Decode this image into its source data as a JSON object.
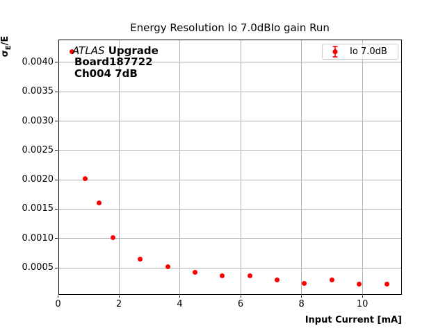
{
  "title": "Energy Resolution Io 7.0dBIo gain Run",
  "axes": {
    "xlabel": "Input Current [mA]",
    "ylabel_sigma": "σ",
    "ylabel_sub": "E",
    "ylabel_rest": "/E"
  },
  "annotation": {
    "experiment": "ATLAS",
    "line1_rest": " Upgrade",
    "line2": "Board187722",
    "line3": "Ch004 7dB"
  },
  "legend": {
    "label": "Io 7.0dB"
  },
  "colors": {
    "marker": "#ff0000",
    "grid": "#b0b0b0",
    "spine": "#000000",
    "legend_border": "#cccccc",
    "background": "#ffffff"
  },
  "chart_data": {
    "type": "scatter",
    "title": "Energy Resolution Io 7.0dBIo gain Run",
    "xlabel": "Input Current [mA]",
    "ylabel": "σ_E/E",
    "xlim": [
      0,
      11.3
    ],
    "ylim": [
      4e-05,
      0.00439
    ],
    "xticks": [
      0,
      2,
      4,
      6,
      8,
      10
    ],
    "yticks": [
      0.0005,
      0.001,
      0.0015,
      0.002,
      0.0025,
      0.003,
      0.0035,
      0.004
    ],
    "grid": true,
    "legend_position": "upper right",
    "series": [
      {
        "name": "Io 7.0dB",
        "color": "#ff0000",
        "marker": "circle-with-errorbar",
        "x": [
          0.45,
          0.9,
          1.35,
          1.8,
          2.7,
          3.6,
          4.5,
          5.4,
          6.3,
          7.2,
          8.1,
          9.0,
          9.9,
          10.8
        ],
        "y": [
          0.00418,
          0.00202,
          0.00161,
          0.00101,
          0.00065,
          0.00052,
          0.00043,
          0.00036,
          0.00037,
          0.00029,
          0.00024,
          0.00029,
          0.00022,
          0.00022
        ]
      }
    ]
  }
}
